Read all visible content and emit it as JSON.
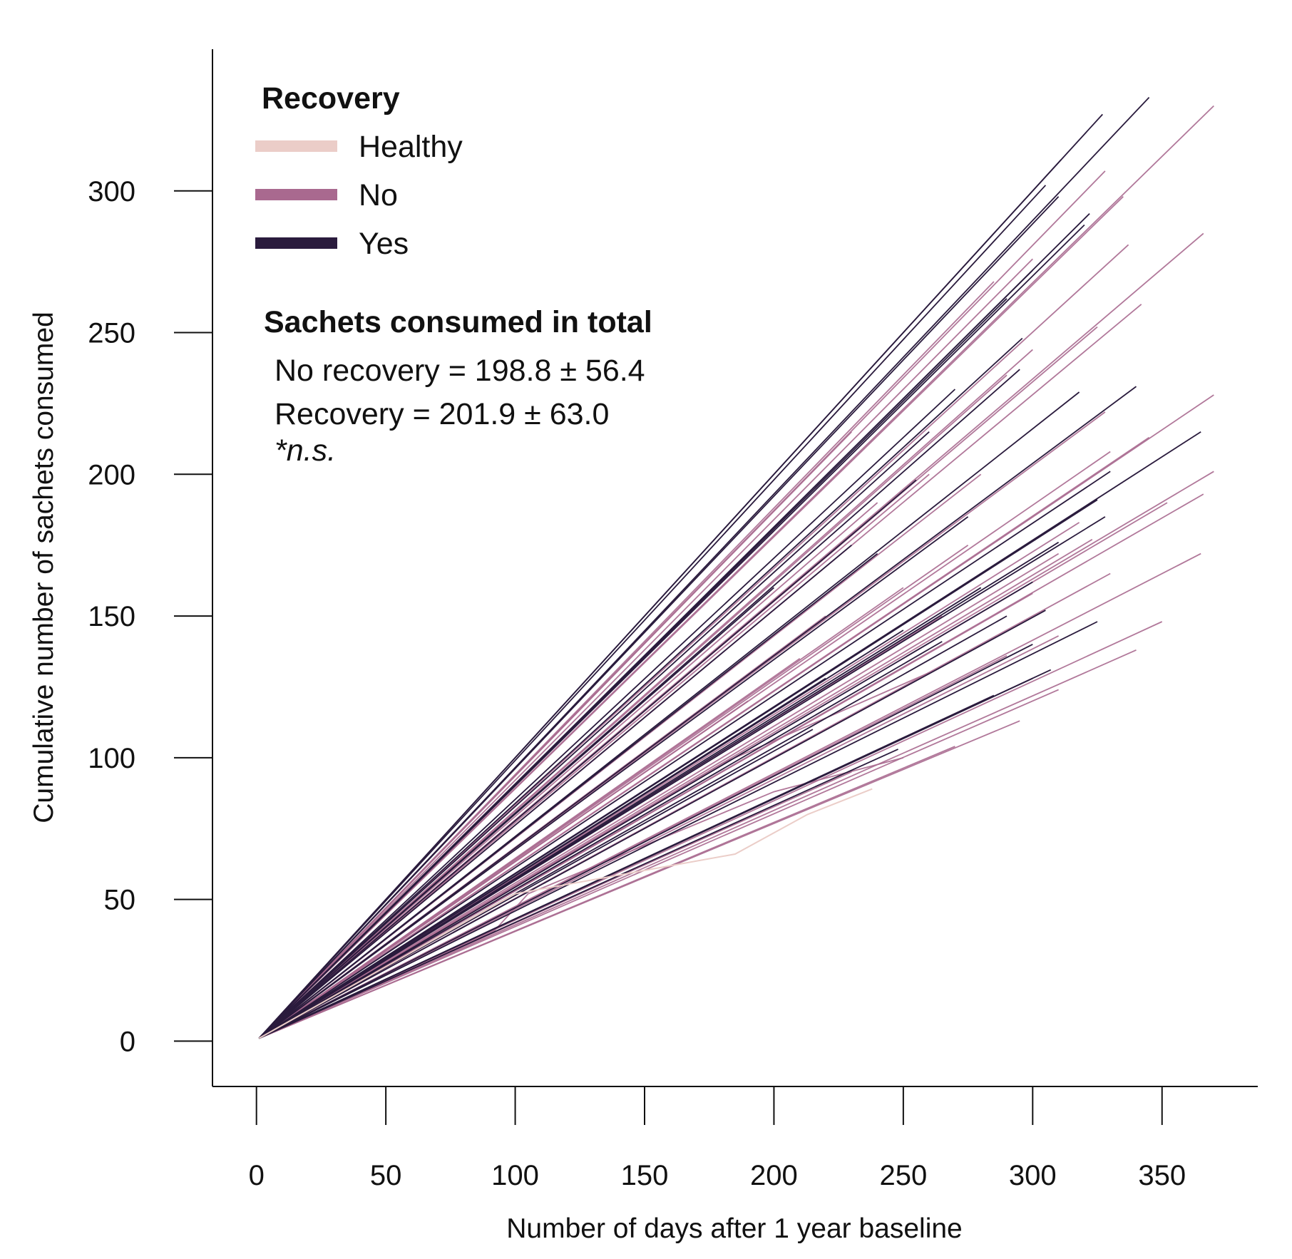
{
  "chart_data": {
    "type": "line",
    "xlabel": "Number of days after 1 year baseline",
    "ylabel": "Cumulative number of sachets consumed",
    "xlim": [
      -17,
      387
    ],
    "ylim": [
      -16,
      350
    ],
    "x_ticks": [
      "0",
      "50",
      "100",
      "150",
      "200",
      "250",
      "300",
      "350"
    ],
    "y_ticks": [
      "0",
      "50",
      "100",
      "150",
      "200",
      "250",
      "300"
    ],
    "grid": false,
    "legend": {
      "title": "Recovery",
      "position": "top-left",
      "entries": [
        {
          "label": "Healthy",
          "color": "#ebcdc8"
        },
        {
          "label": "No",
          "color": "#a9698f"
        },
        {
          "label": "Yes",
          "color": "#2a1b3d"
        }
      ]
    },
    "annotation": {
      "title": "Sachets consumed in total",
      "lines": [
        "No recovery = 198.8 ± 56.4",
        "Recovery = 201.9 ± 63.0"
      ],
      "note": "*n.s."
    },
    "series": [
      {
        "group": "Healthy",
        "x": [
          1,
          100,
          185,
          213,
          238
        ],
        "y": [
          1,
          52,
          66,
          80,
          89
        ]
      },
      {
        "group": "Yes",
        "x": [
          1,
          311
        ],
        "y": [
          1,
          311
        ]
      },
      {
        "group": "Yes",
        "x": [
          1,
          327
        ],
        "y": [
          1,
          327
        ]
      },
      {
        "group": "Yes",
        "x": [
          1,
          345
        ],
        "y": [
          1,
          333
        ]
      },
      {
        "group": "Yes",
        "x": [
          1,
          305
        ],
        "y": [
          1,
          302
        ]
      },
      {
        "group": "Yes",
        "x": [
          1,
          310
        ],
        "y": [
          1,
          298
        ]
      },
      {
        "group": "Yes",
        "x": [
          1,
          322
        ],
        "y": [
          1,
          292
        ]
      },
      {
        "group": "Yes",
        "x": [
          1,
          320
        ],
        "y": [
          1,
          288
        ]
      },
      {
        "group": "Yes",
        "x": [
          1,
          300
        ],
        "y": [
          1,
          272
        ]
      },
      {
        "group": "Yes",
        "x": [
          1,
          290
        ],
        "y": [
          1,
          262
        ]
      },
      {
        "group": "Yes",
        "x": [
          1,
          296
        ],
        "y": [
          1,
          248
        ]
      },
      {
        "group": "Yes",
        "x": [
          1,
          295
        ],
        "y": [
          1,
          237
        ]
      },
      {
        "group": "Yes",
        "x": [
          1,
          318
        ],
        "y": [
          1,
          229
        ]
      },
      {
        "group": "Yes",
        "x": [
          1,
          340
        ],
        "y": [
          1,
          231
        ]
      },
      {
        "group": "Yes",
        "x": [
          1,
          365
        ],
        "y": [
          1,
          215
        ]
      },
      {
        "group": "Yes",
        "x": [
          1,
          330
        ],
        "y": [
          1,
          201
        ]
      },
      {
        "group": "Yes",
        "x": [
          1,
          325
        ],
        "y": [
          1,
          191
        ]
      },
      {
        "group": "Yes",
        "x": [
          1,
          328
        ],
        "y": [
          1,
          185
        ]
      },
      {
        "group": "Yes",
        "x": [
          1,
          310
        ],
        "y": [
          1,
          176
        ]
      },
      {
        "group": "Yes",
        "x": [
          1,
          300
        ],
        "y": [
          1,
          162
        ]
      },
      {
        "group": "Yes",
        "x": [
          1,
          290
        ],
        "y": [
          1,
          150
        ]
      },
      {
        "group": "Yes",
        "x": [
          1,
          305
        ],
        "y": [
          1,
          152
        ]
      },
      {
        "group": "Yes",
        "x": [
          1,
          325
        ],
        "y": [
          1,
          148
        ]
      },
      {
        "group": "Yes",
        "x": [
          1,
          300
        ],
        "y": [
          1,
          140
        ]
      },
      {
        "group": "Yes",
        "x": [
          1,
          307
        ],
        "y": [
          1,
          131
        ]
      },
      {
        "group": "Yes",
        "x": [
          1,
          300
        ],
        "y": [
          1,
          128
        ]
      },
      {
        "group": "Yes",
        "x": [
          1,
          285
        ],
        "y": [
          1,
          122
        ]
      },
      {
        "group": "Yes",
        "x": [
          1,
          248
        ],
        "y": [
          1,
          103
        ]
      },
      {
        "group": "Yes",
        "x": [
          1,
          215
        ],
        "y": [
          1,
          110
        ]
      },
      {
        "group": "Yes",
        "x": [
          1,
          265
        ],
        "y": [
          1,
          141
        ]
      },
      {
        "group": "Yes",
        "x": [
          1,
          240
        ],
        "y": [
          1,
          172
        ]
      },
      {
        "group": "Yes",
        "x": [
          1,
          255
        ],
        "y": [
          1,
          198
        ]
      },
      {
        "group": "Yes",
        "x": [
          1,
          270
        ],
        "y": [
          1,
          230
        ]
      },
      {
        "group": "Yes",
        "x": [
          1,
          230
        ],
        "y": [
          1,
          175
        ]
      },
      {
        "group": "Yes",
        "x": [
          1,
          280
        ],
        "y": [
          1,
          160
        ]
      },
      {
        "group": "Yes",
        "x": [
          1,
          260
        ],
        "y": [
          1,
          215
        ]
      },
      {
        "group": "Yes",
        "x": [
          1,
          200
        ],
        "y": [
          1,
          160
        ]
      },
      {
        "group": "Yes",
        "x": [
          1,
          275
        ],
        "y": [
          1,
          185
        ]
      },
      {
        "group": "Yes",
        "x": [
          1,
          250
        ],
        "y": [
          1,
          145
        ]
      },
      {
        "group": "Yes",
        "x": [
          1,
          220
        ],
        "y": [
          1,
          128
        ]
      },
      {
        "group": "No",
        "x": [
          1,
          370
        ],
        "y": [
          1,
          330
        ]
      },
      {
        "group": "No",
        "x": [
          1,
          328
        ],
        "y": [
          1,
          307
        ]
      },
      {
        "group": "No",
        "x": [
          1,
          335
        ],
        "y": [
          1,
          298
        ]
      },
      {
        "group": "No",
        "x": [
          1,
          366
        ],
        "y": [
          1,
          285
        ]
      },
      {
        "group": "No",
        "x": [
          1,
          337
        ],
        "y": [
          1,
          281
        ]
      },
      {
        "group": "No",
        "x": [
          1,
          300
        ],
        "y": [
          1,
          276
        ]
      },
      {
        "group": "No",
        "x": [
          1,
          285
        ],
        "y": [
          1,
          268
        ]
      },
      {
        "group": "No",
        "x": [
          1,
          342
        ],
        "y": [
          1,
          260
        ]
      },
      {
        "group": "No",
        "x": [
          1,
          325
        ],
        "y": [
          1,
          252
        ]
      },
      {
        "group": "No",
        "x": [
          1,
          300
        ],
        "y": [
          1,
          244
        ]
      },
      {
        "group": "No",
        "x": [
          1,
          290
        ],
        "y": [
          1,
          235
        ]
      },
      {
        "group": "No",
        "x": [
          1,
          370
        ],
        "y": [
          1,
          228
        ]
      },
      {
        "group": "No",
        "x": [
          1,
          328
        ],
        "y": [
          1,
          222
        ]
      },
      {
        "group": "No",
        "x": [
          1,
          345
        ],
        "y": [
          1,
          213
        ]
      },
      {
        "group": "No",
        "x": [
          1,
          330
        ],
        "y": [
          1,
          208
        ]
      },
      {
        "group": "No",
        "x": [
          1,
          370
        ],
        "y": [
          1,
          201
        ]
      },
      {
        "group": "No",
        "x": [
          1,
          366
        ],
        "y": [
          1,
          193
        ]
      },
      {
        "group": "No",
        "x": [
          1,
          352
        ],
        "y": [
          1,
          190
        ]
      },
      {
        "group": "No",
        "x": [
          1,
          318
        ],
        "y": [
          1,
          183
        ]
      },
      {
        "group": "No",
        "x": [
          1,
          323
        ],
        "y": [
          1,
          177
        ]
      },
      {
        "group": "No",
        "x": [
          1,
          310
        ],
        "y": [
          1,
          172
        ]
      },
      {
        "group": "No",
        "x": [
          1,
          365
        ],
        "y": [
          1,
          172
        ]
      },
      {
        "group": "No",
        "x": [
          1,
          330
        ],
        "y": [
          1,
          165
        ]
      },
      {
        "group": "No",
        "x": [
          1,
          300
        ],
        "y": [
          1,
          158
        ]
      },
      {
        "group": "No",
        "x": [
          1,
          350
        ],
        "y": [
          1,
          148
        ]
      },
      {
        "group": "No",
        "x": [
          1,
          310
        ],
        "y": [
          1,
          143
        ]
      },
      {
        "group": "No",
        "x": [
          1,
          340
        ],
        "y": [
          1,
          138
        ]
      },
      {
        "group": "No",
        "x": [
          1,
          290
        ],
        "y": [
          1,
          136
        ]
      },
      {
        "group": "No",
        "x": [
          1,
          310
        ],
        "y": [
          1,
          124
        ]
      },
      {
        "group": "No",
        "x": [
          1,
          295
        ],
        "y": [
          1,
          113
        ]
      },
      {
        "group": "No",
        "x": [
          1,
          270
        ],
        "y": [
          1,
          104
        ]
      },
      {
        "group": "No",
        "x": [
          1,
          230
        ],
        "y": [
          1,
          95
        ]
      },
      {
        "group": "No",
        "x": [
          1,
          92,
          105,
          200,
          250
        ],
        "y": [
          1,
          39,
          52,
          88,
          100
        ]
      },
      {
        "group": "No",
        "x": [
          1,
          180,
          260
        ],
        "y": [
          1,
          98,
          130
        ]
      },
      {
        "group": "No",
        "x": [
          1,
          220
        ],
        "y": [
          1,
          150
        ]
      },
      {
        "group": "No",
        "x": [
          1,
          240
        ],
        "y": [
          1,
          190
        ]
      },
      {
        "group": "No",
        "x": [
          1,
          200
        ],
        "y": [
          1,
          180
        ]
      },
      {
        "group": "No",
        "x": [
          1,
          260
        ],
        "y": [
          1,
          200
        ]
      },
      {
        "group": "No",
        "x": [
          1,
          210
        ],
        "y": [
          1,
          135
        ]
      },
      {
        "group": "No",
        "x": [
          1,
          275
        ],
        "y": [
          1,
          175
        ]
      },
      {
        "group": "No",
        "x": [
          1,
          250
        ],
        "y": [
          1,
          160
        ]
      },
      {
        "group": "No",
        "x": [
          1,
          190
        ],
        "y": [
          1,
          120
        ]
      },
      {
        "group": "No",
        "x": [
          1,
          230
        ],
        "y": [
          1,
          215
        ]
      },
      {
        "group": "No",
        "x": [
          1,
          265
        ],
        "y": [
          1,
          150
        ]
      },
      {
        "group": "No",
        "x": [
          1,
          280
        ],
        "y": [
          1,
          200
        ]
      }
    ]
  }
}
